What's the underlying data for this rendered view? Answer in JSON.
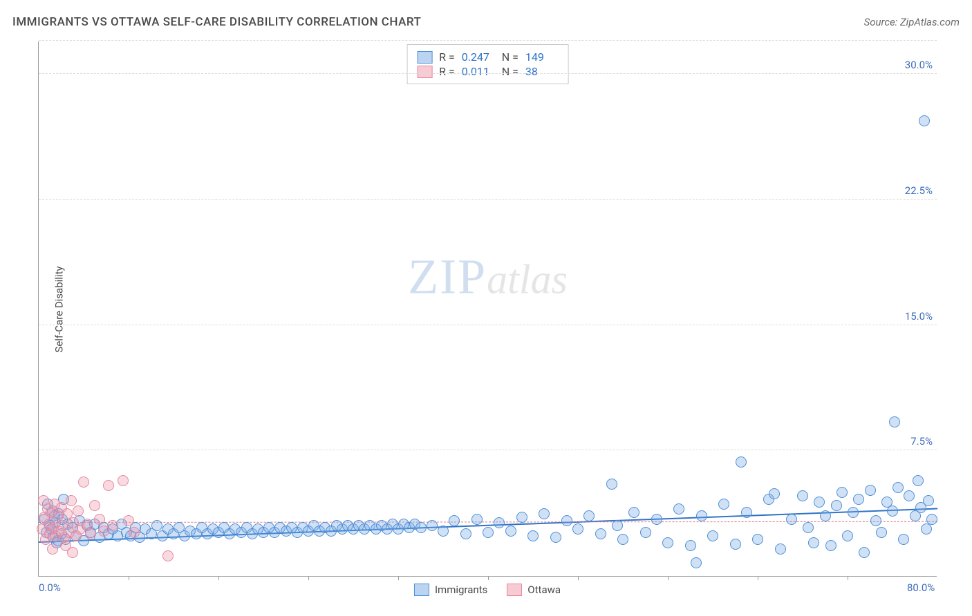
{
  "title": "IMMIGRANTS VS OTTAWA SELF-CARE DISABILITY CORRELATION CHART",
  "source": "Source: ZipAtlas.com",
  "watermark_zip": "ZIP",
  "watermark_atlas": "atlas",
  "chart": {
    "type": "scatter",
    "y_axis_title": "Self-Care Disability",
    "xlim": [
      0,
      80
    ],
    "ylim": [
      0,
      32
    ],
    "x_ticks_labeled": [
      {
        "v": 0,
        "label": "0.0%"
      },
      {
        "v": 80,
        "label": "80.0%"
      }
    ],
    "x_ticks_minor": [
      8,
      16,
      24,
      32,
      40,
      48,
      56,
      64,
      72
    ],
    "y_ticks": [
      {
        "v": 7.5,
        "label": "7.5%"
      },
      {
        "v": 15.0,
        "label": "15.0%"
      },
      {
        "v": 22.5,
        "label": "22.5%"
      },
      {
        "v": 30.0,
        "label": "30.0%"
      }
    ],
    "background_color": "#ffffff",
    "grid_color": "#dcdcdc",
    "axis_color": "#9a9a9a",
    "label_color": "#3d6db8",
    "marker_size": 16,
    "series": [
      {
        "name": "Immigrants",
        "color_fill": "rgba(120,170,230,0.35)",
        "color_stroke": "#4d8fd6",
        "trend_color": "#2e73c8",
        "trend_style": "solid",
        "trend_width": 2.5,
        "trend": {
          "x0": 0,
          "y0": 2.0,
          "x1": 80,
          "y1": 4.0
        },
        "stats": {
          "R": "0.247",
          "N": "149"
        },
        "points": [
          [
            0.5,
            3.4
          ],
          [
            0.7,
            2.6
          ],
          [
            0.8,
            4.3
          ],
          [
            1.0,
            3.0
          ],
          [
            1.2,
            3.9
          ],
          [
            1.3,
            2.3
          ],
          [
            1.5,
            3.2
          ],
          [
            1.6,
            2.0
          ],
          [
            1.8,
            3.7
          ],
          [
            2.0,
            2.5
          ],
          [
            2.2,
            4.6
          ],
          [
            2.4,
            2.2
          ],
          [
            2.6,
            3.1
          ],
          [
            3.0,
            2.9
          ],
          [
            3.3,
            2.4
          ],
          [
            3.6,
            3.3
          ],
          [
            4.0,
            2.1
          ],
          [
            4.3,
            3.0
          ],
          [
            4.6,
            2.6
          ],
          [
            5.0,
            3.1
          ],
          [
            5.4,
            2.3
          ],
          [
            5.8,
            2.9
          ],
          [
            6.2,
            2.5
          ],
          [
            6.6,
            2.8
          ],
          [
            7.0,
            2.4
          ],
          [
            7.4,
            3.1
          ],
          [
            7.8,
            2.6
          ],
          [
            8.2,
            2.4
          ],
          [
            8.6,
            2.9
          ],
          [
            9.0,
            2.3
          ],
          [
            9.5,
            2.8
          ],
          [
            10.0,
            2.5
          ],
          [
            10.5,
            3.0
          ],
          [
            11.0,
            2.4
          ],
          [
            11.5,
            2.8
          ],
          [
            12.0,
            2.5
          ],
          [
            12.5,
            2.9
          ],
          [
            13.0,
            2.4
          ],
          [
            13.5,
            2.7
          ],
          [
            14.0,
            2.5
          ],
          [
            14.5,
            2.9
          ],
          [
            15.0,
            2.5
          ],
          [
            15.5,
            2.8
          ],
          [
            16.0,
            2.6
          ],
          [
            16.5,
            2.9
          ],
          [
            17.0,
            2.5
          ],
          [
            17.5,
            2.8
          ],
          [
            18.0,
            2.6
          ],
          [
            18.5,
            2.9
          ],
          [
            19.0,
            2.5
          ],
          [
            19.5,
            2.8
          ],
          [
            20.0,
            2.6
          ],
          [
            20.5,
            2.9
          ],
          [
            21.0,
            2.6
          ],
          [
            21.5,
            2.9
          ],
          [
            22.0,
            2.7
          ],
          [
            22.5,
            2.9
          ],
          [
            23.0,
            2.6
          ],
          [
            23.5,
            2.9
          ],
          [
            24.0,
            2.7
          ],
          [
            24.5,
            3.0
          ],
          [
            25.0,
            2.7
          ],
          [
            25.5,
            2.9
          ],
          [
            26.0,
            2.7
          ],
          [
            26.5,
            3.0
          ],
          [
            27.0,
            2.8
          ],
          [
            27.5,
            3.0
          ],
          [
            28.0,
            2.8
          ],
          [
            28.5,
            3.0
          ],
          [
            29.0,
            2.8
          ],
          [
            29.5,
            3.0
          ],
          [
            30.0,
            2.8
          ],
          [
            30.5,
            3.0
          ],
          [
            31.0,
            2.8
          ],
          [
            31.5,
            3.1
          ],
          [
            32.0,
            2.8
          ],
          [
            32.5,
            3.1
          ],
          [
            33.0,
            2.9
          ],
          [
            33.5,
            3.1
          ],
          [
            34.0,
            2.9
          ],
          [
            35.0,
            3.0
          ],
          [
            36.0,
            2.7
          ],
          [
            37.0,
            3.3
          ],
          [
            38.0,
            2.5
          ],
          [
            39.0,
            3.4
          ],
          [
            40.0,
            2.6
          ],
          [
            41.0,
            3.2
          ],
          [
            42.0,
            2.7
          ],
          [
            43.0,
            3.5
          ],
          [
            44.0,
            2.4
          ],
          [
            45.0,
            3.7
          ],
          [
            46.0,
            2.3
          ],
          [
            47.0,
            3.3
          ],
          [
            48.0,
            2.8
          ],
          [
            49.0,
            3.6
          ],
          [
            50.0,
            2.5
          ],
          [
            51.0,
            5.5
          ],
          [
            51.5,
            3.0
          ],
          [
            52.0,
            2.2
          ],
          [
            53.0,
            3.8
          ],
          [
            54.0,
            2.6
          ],
          [
            55.0,
            3.4
          ],
          [
            56.0,
            2.0
          ],
          [
            57.0,
            4.0
          ],
          [
            58.0,
            1.8
          ],
          [
            59.0,
            3.6
          ],
          [
            60.0,
            2.4
          ],
          [
            61.0,
            4.3
          ],
          [
            62.0,
            1.9
          ],
          [
            62.5,
            6.8
          ],
          [
            63.0,
            3.8
          ],
          [
            64.0,
            2.2
          ],
          [
            65.0,
            4.6
          ],
          [
            65.5,
            4.9
          ],
          [
            66.0,
            1.6
          ],
          [
            67.0,
            3.4
          ],
          [
            68.0,
            4.8
          ],
          [
            68.5,
            2.9
          ],
          [
            69.0,
            2.0
          ],
          [
            69.5,
            4.4
          ],
          [
            70.0,
            3.6
          ],
          [
            70.5,
            1.8
          ],
          [
            71.0,
            4.2
          ],
          [
            71.5,
            5.0
          ],
          [
            72.0,
            2.4
          ],
          [
            72.5,
            3.8
          ],
          [
            73.0,
            4.6
          ],
          [
            73.5,
            1.4
          ],
          [
            74.0,
            5.1
          ],
          [
            74.5,
            3.3
          ],
          [
            75.0,
            2.6
          ],
          [
            75.5,
            4.4
          ],
          [
            76.0,
            3.9
          ],
          [
            76.2,
            9.2
          ],
          [
            76.5,
            5.3
          ],
          [
            77.0,
            2.2
          ],
          [
            77.5,
            4.8
          ],
          [
            78.0,
            3.6
          ],
          [
            78.3,
            5.7
          ],
          [
            78.5,
            4.1
          ],
          [
            78.8,
            27.2
          ],
          [
            79.0,
            2.8
          ],
          [
            79.2,
            4.5
          ],
          [
            79.5,
            3.4
          ],
          [
            58.5,
            0.8
          ],
          [
            1.1,
            2.8
          ],
          [
            1.4,
            3.6
          ],
          [
            1.7,
            2.1
          ],
          [
            2.1,
            3.4
          ]
        ]
      },
      {
        "name": "Ottawa",
        "color_fill": "rgba(240,150,170,0.35)",
        "color_stroke": "#e38aa0",
        "trend_color": "#e07a90",
        "trend_style": "dashed",
        "trend_width": 1.5,
        "trend": {
          "x0": 0,
          "y0": 3.2,
          "x1": 80,
          "y1": 3.25
        },
        "stats": {
          "R": "0.011",
          "N": "38"
        },
        "points": [
          [
            0.3,
            2.8
          ],
          [
            0.5,
            3.5
          ],
          [
            0.6,
            2.2
          ],
          [
            0.8,
            4.0
          ],
          [
            0.9,
            3.1
          ],
          [
            1.0,
            2.5
          ],
          [
            1.1,
            3.8
          ],
          [
            1.3,
            2.9
          ],
          [
            1.4,
            4.3
          ],
          [
            1.5,
            2.4
          ],
          [
            1.7,
            3.6
          ],
          [
            1.8,
            2.7
          ],
          [
            2.0,
            4.1
          ],
          [
            2.1,
            3.0
          ],
          [
            2.3,
            2.3
          ],
          [
            2.5,
            3.7
          ],
          [
            2.7,
            2.6
          ],
          [
            2.9,
            4.5
          ],
          [
            3.1,
            3.2
          ],
          [
            3.3,
            2.4
          ],
          [
            3.5,
            3.9
          ],
          [
            3.7,
            2.8
          ],
          [
            4.0,
            5.6
          ],
          [
            4.3,
            3.1
          ],
          [
            4.6,
            2.5
          ],
          [
            5.0,
            4.2
          ],
          [
            5.4,
            3.4
          ],
          [
            5.8,
            2.7
          ],
          [
            6.2,
            5.4
          ],
          [
            6.6,
            3.0
          ],
          [
            7.5,
            5.7
          ],
          [
            8.0,
            3.3
          ],
          [
            8.5,
            2.6
          ],
          [
            1.2,
            1.6
          ],
          [
            2.4,
            1.8
          ],
          [
            3.0,
            1.4
          ],
          [
            11.5,
            1.2
          ],
          [
            0.4,
            4.5
          ]
        ]
      }
    ]
  },
  "legend_bottom": [
    {
      "swatch": "blue",
      "label": "Immigrants"
    },
    {
      "swatch": "pink",
      "label": "Ottawa"
    }
  ]
}
